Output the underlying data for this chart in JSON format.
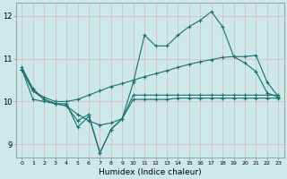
{
  "xlabel": "Humidex (Indice chaleur)",
  "bg_color": "#cce8e8",
  "line_color": "#1a7070",
  "grid_color": "#b8d8d8",
  "xlim": [
    -0.5,
    23.5
  ],
  "ylim": [
    8.7,
    12.3
  ],
  "xticks": [
    0,
    1,
    2,
    3,
    4,
    5,
    6,
    7,
    8,
    9,
    10,
    11,
    12,
    13,
    14,
    15,
    16,
    17,
    18,
    19,
    20,
    21,
    22,
    23
  ],
  "yticks": [
    9,
    10,
    11,
    12
  ],
  "series": [
    {
      "x": [
        0,
        1,
        2,
        3,
        4,
        5,
        6,
        7,
        8,
        9,
        10,
        11,
        12,
        13,
        14,
        15,
        16,
        17,
        18,
        19,
        20,
        21,
        22,
        23
      ],
      "y": [
        10.8,
        10.3,
        10.05,
        9.95,
        9.95,
        9.4,
        9.65,
        8.8,
        9.35,
        9.6,
        10.45,
        11.55,
        11.3,
        11.3,
        11.55,
        11.75,
        11.9,
        12.1,
        11.75,
        11.05,
        10.9,
        10.7,
        10.2,
        10.1
      ]
    },
    {
      "x": [
        0,
        1,
        2,
        3,
        4,
        5,
        6,
        7,
        8,
        9,
        10,
        11,
        12,
        13,
        14,
        15,
        16,
        17,
        18,
        19,
        20,
        21,
        22,
        23
      ],
      "y": [
        10.75,
        10.25,
        10.1,
        10.0,
        10.0,
        10.05,
        10.15,
        10.25,
        10.35,
        10.42,
        10.5,
        10.58,
        10.65,
        10.72,
        10.8,
        10.87,
        10.93,
        10.98,
        11.03,
        11.05,
        11.05,
        11.08,
        10.45,
        10.12
      ]
    },
    {
      "x": [
        0,
        1,
        2,
        3,
        4,
        5,
        6,
        7,
        8,
        9,
        10,
        11,
        12,
        13,
        14,
        15,
        16,
        17,
        18,
        19,
        20,
        21,
        22,
        23
      ],
      "y": [
        10.75,
        10.05,
        10.0,
        9.95,
        9.9,
        9.7,
        9.55,
        9.45,
        9.5,
        9.6,
        10.05,
        10.05,
        10.05,
        10.05,
        10.08,
        10.08,
        10.08,
        10.08,
        10.08,
        10.08,
        10.08,
        10.08,
        10.08,
        10.08
      ]
    },
    {
      "x": [
        0,
        1,
        2,
        3,
        4,
        5,
        6,
        7,
        8,
        9,
        10,
        11,
        12,
        13,
        14,
        15,
        16,
        17,
        18,
        19,
        20,
        21,
        22,
        23
      ],
      "y": [
        10.75,
        10.25,
        10.05,
        9.95,
        9.9,
        9.55,
        9.7,
        8.8,
        9.35,
        9.6,
        10.15,
        10.15,
        10.15,
        10.15,
        10.15,
        10.15,
        10.15,
        10.15,
        10.15,
        10.15,
        10.15,
        10.15,
        10.15,
        10.15
      ]
    }
  ]
}
